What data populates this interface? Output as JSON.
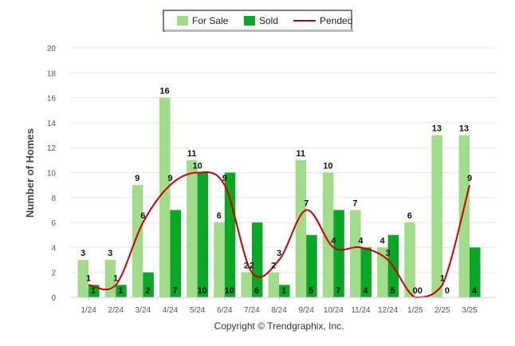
{
  "chart_data": {
    "type": "bar",
    "categories": [
      "1/24",
      "2/24",
      "3/24",
      "4/24",
      "5/24",
      "6/24",
      "7/24",
      "8/24",
      "9/24",
      "10/24",
      "11/24",
      "12/24",
      "1/25",
      "2/25",
      "3/25"
    ],
    "series": [
      {
        "name": "For Sale",
        "type": "bar",
        "color": "#a0dc8a",
        "values": [
          3,
          3,
          9,
          16,
          11,
          6,
          2,
          2,
          11,
          10,
          7,
          4,
          6,
          13,
          13
        ]
      },
      {
        "name": "Sold",
        "type": "bar",
        "color": "#0aa626",
        "values": [
          1,
          1,
          2,
          7,
          10,
          10,
          6,
          1,
          5,
          7,
          4,
          5,
          0,
          0,
          4
        ]
      },
      {
        "name": "Pended",
        "type": "line",
        "color": "#cc0000",
        "values": [
          1,
          1,
          6,
          9,
          10,
          9,
          2,
          3,
          7,
          4,
          4,
          3,
          0,
          1,
          9
        ]
      }
    ],
    "ylabel": "Number of Homes",
    "xlabel": "",
    "ylim": [
      0,
      20
    ],
    "yticks": [
      0,
      2,
      4,
      6,
      8,
      10,
      12,
      14,
      16,
      18,
      20
    ],
    "grid": true,
    "legend": "top-center",
    "footer": "Copyright © Trendgraphix, Inc."
  }
}
